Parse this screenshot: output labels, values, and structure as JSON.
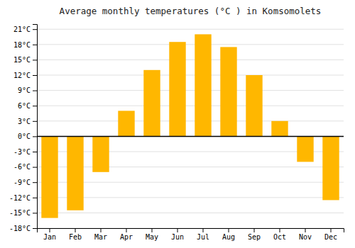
{
  "chart_data": {
    "type": "bar",
    "title": "Average monthly temperatures (°C ) in Komsomolets",
    "categories": [
      "Jan",
      "Feb",
      "Mar",
      "Apr",
      "May",
      "Jun",
      "Jul",
      "Aug",
      "Sep",
      "Oct",
      "Nov",
      "Dec"
    ],
    "values": [
      -16,
      -14.5,
      -7,
      5,
      13,
      18.5,
      20,
      17.5,
      12,
      3,
      -5,
      -12.5
    ],
    "color": "#FFB700",
    "ylim": [
      -18,
      22
    ],
    "yticks": [
      {
        "value": -18,
        "label": "-18°C"
      },
      {
        "value": -15,
        "label": "-15°C"
      },
      {
        "value": -12,
        "label": "-12°C"
      },
      {
        "value": -9,
        "label": "-9°C"
      },
      {
        "value": -6,
        "label": "-6°C"
      },
      {
        "value": -3,
        "label": "-3°C"
      },
      {
        "value": 0,
        "label": "0°C"
      },
      {
        "value": 3,
        "label": "3°C"
      },
      {
        "value": 6,
        "label": "6°C"
      },
      {
        "value": 9,
        "label": "9°C"
      },
      {
        "value": 12,
        "label": "12°C"
      },
      {
        "value": 15,
        "label": "15°C"
      },
      {
        "value": 18,
        "label": "18°C"
      },
      {
        "value": 21,
        "label": "21°C"
      }
    ],
    "grid": true
  }
}
